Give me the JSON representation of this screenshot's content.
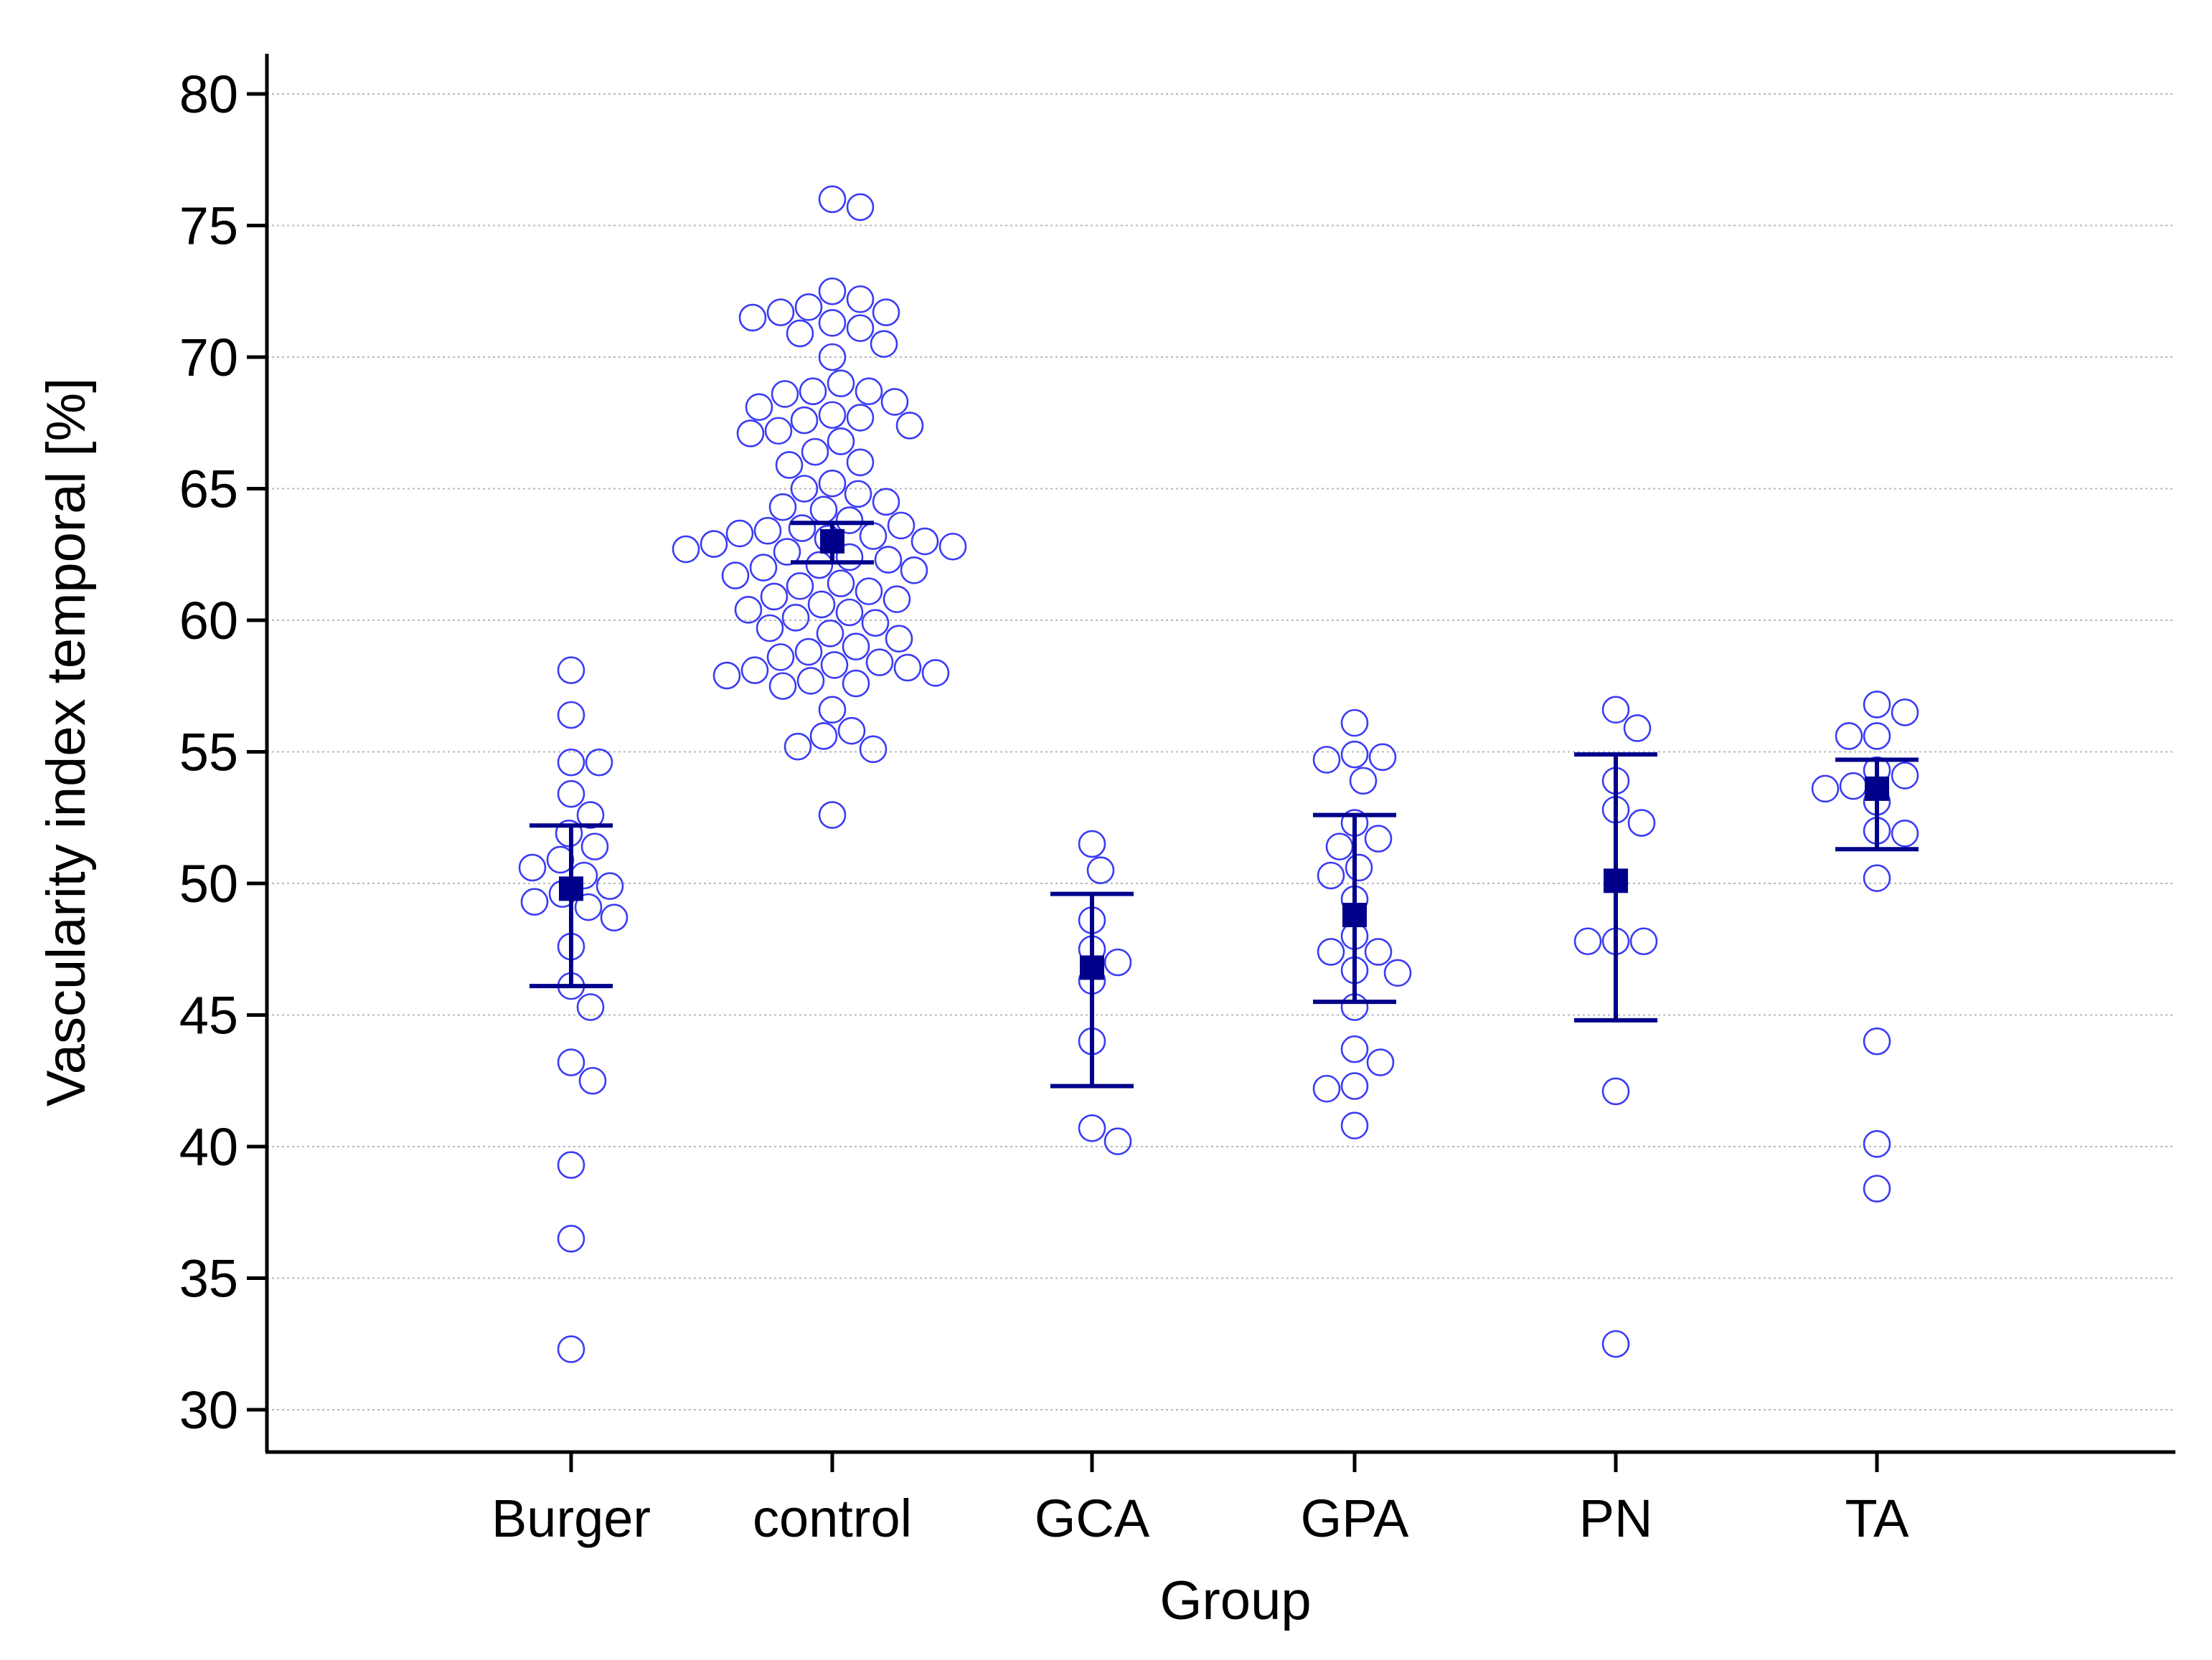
{
  "chart_data": {
    "type": "scatter",
    "title": "",
    "xlabel": "Group",
    "ylabel": "Vascularity index temporal [%]",
    "ylim": [
      28.5,
      82
    ],
    "yticks": [
      30,
      35,
      40,
      45,
      50,
      55,
      60,
      65,
      70,
      75,
      80
    ],
    "grid": "horizontal dotted",
    "categories": [
      "Burger",
      "control",
      "GCA",
      "GPA",
      "PN",
      "TA"
    ],
    "groups": [
      {
        "name": "Burger",
        "mean": 49.8,
        "ci_low": 46.1,
        "ci_high": 52.2,
        "points": [
          58.1,
          56.4,
          54.6,
          54.6,
          53.4,
          52.6,
          51.9,
          51.4,
          50.9,
          50.6,
          50.3,
          49.9,
          49.6,
          49.3,
          49.1,
          48.7,
          47.6,
          46.1,
          45.3,
          43.2,
          42.5,
          39.3,
          36.5,
          32.3
        ]
      },
      {
        "name": "control",
        "mean": 63.0,
        "ci_low": 62.2,
        "ci_high": 63.7,
        "points": [
          76.0,
          75.7,
          72.5,
          72.2,
          71.9,
          71.7,
          71.7,
          71.5,
          71.3,
          71.1,
          70.9,
          70.5,
          70.0,
          69.0,
          68.7,
          68.7,
          68.6,
          68.3,
          68.1,
          67.8,
          67.7,
          67.6,
          67.4,
          67.2,
          67.1,
          66.8,
          66.4,
          66.0,
          65.9,
          65.2,
          65.0,
          64.8,
          64.5,
          64.3,
          64.2,
          63.8,
          63.6,
          63.5,
          63.4,
          63.3,
          63.2,
          63.1,
          63.0,
          62.9,
          62.8,
          62.7,
          62.6,
          62.4,
          62.3,
          62.1,
          62.0,
          61.9,
          61.7,
          61.4,
          61.3,
          61.1,
          60.9,
          60.8,
          60.6,
          60.4,
          60.3,
          60.1,
          59.9,
          59.7,
          59.5,
          59.3,
          59.0,
          58.8,
          58.6,
          58.4,
          58.3,
          58.2,
          58.1,
          58.0,
          57.9,
          57.7,
          57.6,
          57.5,
          56.6,
          55.8,
          55.6,
          55.2,
          55.1,
          52.6
        ]
      },
      {
        "name": "GCA",
        "mean": 46.8,
        "ci_low": 42.3,
        "ci_high": 49.6,
        "points": [
          51.5,
          50.5,
          48.6,
          47.5,
          47.0,
          46.3,
          44.0,
          40.7,
          40.2
        ]
      },
      {
        "name": "GPA",
        "mean": 48.8,
        "ci_low": 45.5,
        "ci_high": 52.6,
        "points": [
          56.1,
          54.9,
          54.8,
          54.7,
          53.9,
          52.3,
          51.7,
          51.4,
          50.6,
          50.3,
          49.4,
          48.0,
          47.4,
          47.4,
          46.7,
          46.6,
          45.3,
          43.7,
          43.2,
          42.3,
          42.2,
          40.8
        ]
      },
      {
        "name": "PN",
        "mean": 50.1,
        "ci_low": 44.8,
        "ci_high": 54.9,
        "points": [
          56.6,
          55.9,
          53.9,
          52.8,
          52.3,
          47.8,
          47.8,
          47.8,
          42.1,
          32.5
        ]
      },
      {
        "name": "TA",
        "mean": 53.6,
        "ci_low": 51.3,
        "ci_high": 54.7,
        "points": [
          56.8,
          56.5,
          55.6,
          55.6,
          54.3,
          54.1,
          53.7,
          53.6,
          53.1,
          52.0,
          51.9,
          50.2,
          44.0,
          40.1,
          38.4
        ]
      }
    ],
    "colors": {
      "points": "#3b3bf5",
      "mean": "#00008b",
      "grid": "#b8b8b8",
      "axis": "#000000"
    }
  }
}
